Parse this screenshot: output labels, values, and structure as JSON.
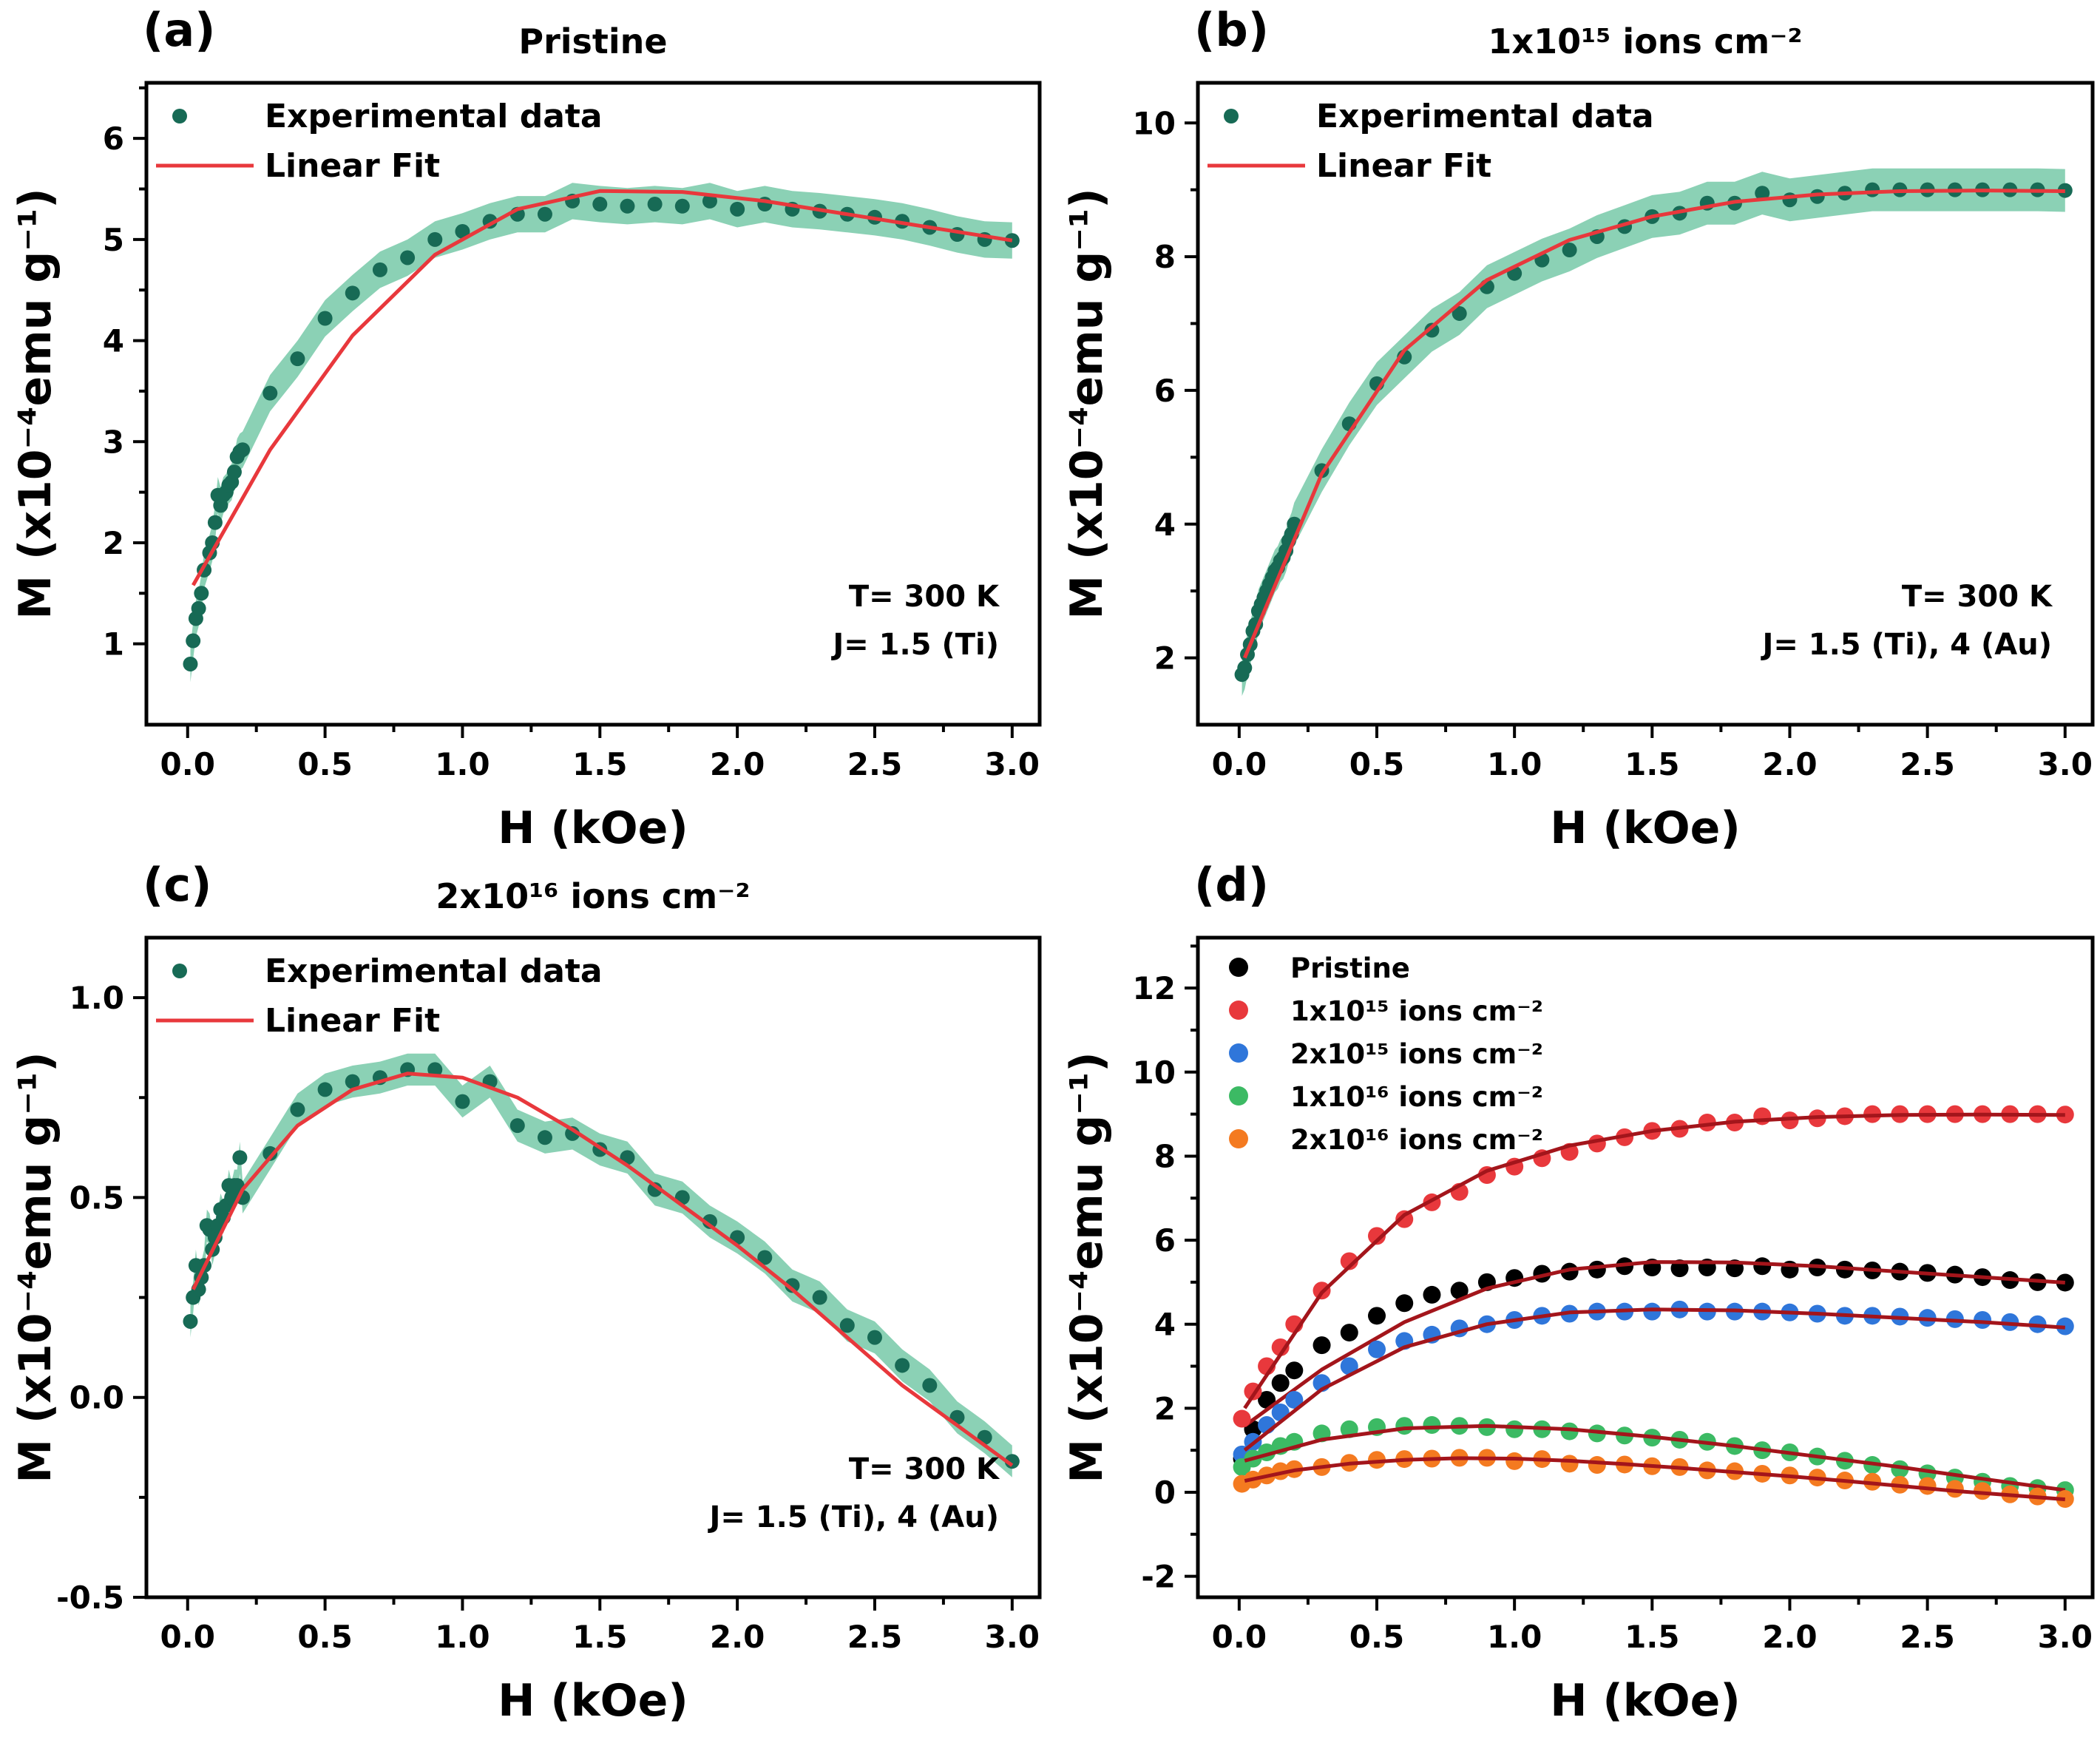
{
  "colors": {
    "experimental": "#176a55",
    "band": "#77c9a8",
    "fit": "#e8383c",
    "fit_dark": "#a3151b",
    "pristine": "#000000",
    "dose_1e15": "#e8383c",
    "dose_2e15": "#2f76da",
    "dose_1e16": "#3cba64",
    "dose_2e16": "#f47a20"
  },
  "chart_data": [
    {
      "panel": "a",
      "label": "(a)",
      "type": "scatter",
      "title": "Pristine",
      "xlabel": "H (kOe)",
      "ylabel": "M (x10⁻⁴emu g⁻¹)",
      "xlim": [
        -0.15,
        3.1
      ],
      "ylim": [
        0.2,
        6.55
      ],
      "xticks": [
        "0.0",
        "0.5",
        "1.0",
        "1.5",
        "2.0",
        "2.5",
        "3.0"
      ],
      "yticks": [
        "1",
        "2",
        "3",
        "4",
        "5",
        "6"
      ],
      "legend": {
        "marker_label": "Experimental data",
        "line_label": "Linear Fit",
        "placement": "top-left"
      },
      "annotations": [
        "T= 300 K",
        "J= 1.5 (Ti)"
      ],
      "x": [
        0.01,
        0.02,
        0.03,
        0.04,
        0.05,
        0.06,
        0.08,
        0.09,
        0.1,
        0.11,
        0.12,
        0.13,
        0.14,
        0.15,
        0.16,
        0.17,
        0.18,
        0.19,
        0.2,
        0.3,
        0.4,
        0.5,
        0.6,
        0.7,
        0.8,
        0.9,
        1.0,
        1.1,
        1.2,
        1.3,
        1.4,
        1.5,
        1.6,
        1.7,
        1.8,
        1.9,
        2.0,
        2.1,
        2.2,
        2.3,
        2.4,
        2.5,
        2.6,
        2.7,
        2.8,
        2.9,
        3.0
      ],
      "y": [
        0.8,
        1.03,
        1.25,
        1.35,
        1.5,
        1.73,
        1.9,
        2.0,
        2.2,
        2.47,
        2.37,
        2.47,
        2.5,
        2.57,
        2.6,
        2.7,
        2.85,
        2.9,
        2.92,
        3.48,
        3.82,
        4.22,
        4.47,
        4.7,
        4.82,
        5.0,
        5.08,
        5.18,
        5.25,
        5.25,
        5.38,
        5.35,
        5.33,
        5.35,
        5.33,
        5.38,
        5.3,
        5.35,
        5.3,
        5.28,
        5.25,
        5.22,
        5.18,
        5.12,
        5.05,
        5.0,
        4.99
      ],
      "fit": {
        "x": [
          0.02,
          0.3,
          0.6,
          0.9,
          1.2,
          1.5,
          1.8,
          2.1,
          2.4,
          2.7,
          3.0
        ],
        "y": [
          1.58,
          2.92,
          4.05,
          4.85,
          5.3,
          5.48,
          5.47,
          5.38,
          5.25,
          5.12,
          4.99
        ]
      },
      "band_halfwidth": 0.18
    },
    {
      "panel": "b",
      "label": "(b)",
      "type": "scatter",
      "title": "1x10¹⁵ ions cm⁻²",
      "xlabel": "H (kOe)",
      "ylabel": "M (x10⁻⁴emu g⁻¹)",
      "xlim": [
        -0.15,
        3.1
      ],
      "ylim": [
        1.0,
        10.6
      ],
      "xticks": [
        "0.0",
        "0.5",
        "1.0",
        "1.5",
        "2.0",
        "2.5",
        "3.0"
      ],
      "yticks": [
        "2",
        "4",
        "6",
        "8",
        "10"
      ],
      "legend": {
        "marker_label": "Experimental data",
        "line_label": "Linear Fit",
        "placement": "top-left"
      },
      "annotations": [
        "T= 300 K",
        "J= 1.5 (Ti), 4 (Au)"
      ],
      "x": [
        0.01,
        0.02,
        0.03,
        0.04,
        0.05,
        0.06,
        0.07,
        0.08,
        0.09,
        0.1,
        0.11,
        0.12,
        0.13,
        0.14,
        0.15,
        0.16,
        0.17,
        0.18,
        0.19,
        0.2,
        0.3,
        0.4,
        0.5,
        0.6,
        0.7,
        0.8,
        0.9,
        1.0,
        1.1,
        1.2,
        1.3,
        1.4,
        1.5,
        1.6,
        1.7,
        1.8,
        1.9,
        2.0,
        2.1,
        2.2,
        2.3,
        2.4,
        2.5,
        2.6,
        2.7,
        2.8,
        2.9,
        3.0
      ],
      "y": [
        1.75,
        1.85,
        2.05,
        2.2,
        2.4,
        2.5,
        2.7,
        2.8,
        2.9,
        3.0,
        3.1,
        3.2,
        3.3,
        3.35,
        3.45,
        3.5,
        3.6,
        3.75,
        3.85,
        4.0,
        4.8,
        5.5,
        6.1,
        6.5,
        6.9,
        7.15,
        7.55,
        7.75,
        7.95,
        8.1,
        8.3,
        8.45,
        8.6,
        8.65,
        8.8,
        8.8,
        8.95,
        8.85,
        8.9,
        8.95,
        9.0,
        9.0,
        9.0,
        9.0,
        9.0,
        9.0,
        9.0,
        8.99
      ],
      "fit": {
        "x": [
          0.02,
          0.3,
          0.6,
          0.9,
          1.2,
          1.5,
          1.8,
          2.1,
          2.4,
          2.7,
          3.0
        ],
        "y": [
          2.0,
          4.75,
          6.6,
          7.65,
          8.25,
          8.6,
          8.82,
          8.93,
          8.98,
          8.99,
          8.98
        ]
      },
      "band_halfwidth": 0.32
    },
    {
      "panel": "c",
      "label": "(c)",
      "type": "scatter",
      "title": "2x10¹⁶ ions cm⁻²",
      "xlabel": "H (kOe)",
      "ylabel": "M (x10⁻⁴emu g⁻¹)",
      "xlim": [
        -0.15,
        3.1
      ],
      "ylim": [
        -0.5,
        1.15
      ],
      "xticks": [
        "0.0",
        "0.5",
        "1.0",
        "1.5",
        "2.0",
        "2.5",
        "3.0"
      ],
      "yticks": [
        "-0.5",
        "0.0",
        "0.5",
        "1.0"
      ],
      "legend": {
        "marker_label": "Experimental data",
        "line_label": "Linear Fit",
        "placement": "top-left"
      },
      "annotations": [
        "T= 300 K",
        "J= 1.5 (Ti), 4 (Au)"
      ],
      "x": [
        0.01,
        0.02,
        0.03,
        0.04,
        0.05,
        0.06,
        0.07,
        0.08,
        0.09,
        0.1,
        0.11,
        0.12,
        0.13,
        0.14,
        0.15,
        0.16,
        0.17,
        0.18,
        0.19,
        0.2,
        0.3,
        0.4,
        0.5,
        0.6,
        0.7,
        0.8,
        0.9,
        1.0,
        1.1,
        1.2,
        1.3,
        1.4,
        1.5,
        1.6,
        1.7,
        1.8,
        1.9,
        2.0,
        2.1,
        2.2,
        2.3,
        2.4,
        2.5,
        2.6,
        2.7,
        2.8,
        2.9,
        3.0
      ],
      "y": [
        0.19,
        0.25,
        0.33,
        0.27,
        0.3,
        0.33,
        0.43,
        0.42,
        0.37,
        0.4,
        0.43,
        0.47,
        0.45,
        0.48,
        0.53,
        0.5,
        0.53,
        0.53,
        0.6,
        0.5,
        0.61,
        0.72,
        0.77,
        0.79,
        0.8,
        0.82,
        0.82,
        0.74,
        0.79,
        0.68,
        0.65,
        0.66,
        0.62,
        0.6,
        0.52,
        0.5,
        0.44,
        0.4,
        0.35,
        0.28,
        0.25,
        0.18,
        0.15,
        0.08,
        0.03,
        -0.05,
        -0.1,
        -0.16
      ],
      "fit": {
        "x": [
          0.02,
          0.2,
          0.4,
          0.6,
          0.8,
          1.0,
          1.2,
          1.4,
          1.6,
          1.8,
          2.0,
          2.2,
          2.4,
          2.6,
          2.8,
          3.0
        ],
        "y": [
          0.27,
          0.52,
          0.68,
          0.77,
          0.81,
          0.8,
          0.75,
          0.67,
          0.58,
          0.48,
          0.38,
          0.27,
          0.15,
          0.03,
          -0.07,
          -0.17
        ]
      },
      "band_halfwidth": 0.04
    },
    {
      "panel": "d",
      "label": "(d)",
      "type": "scatter",
      "title": "",
      "xlabel": "H (kOe)",
      "ylabel": "M (x10⁻⁴emu g⁻¹)",
      "xlim": [
        -0.15,
        3.1
      ],
      "ylim": [
        -2.5,
        13.2
      ],
      "xticks": [
        "0.0",
        "0.5",
        "1.0",
        "1.5",
        "2.0",
        "2.5",
        "3.0"
      ],
      "yticks": [
        "-2",
        "0",
        "2",
        "4",
        "6",
        "8",
        "10",
        "12"
      ],
      "legend_placement": "top-left",
      "series": [
        {
          "name": "Pristine",
          "color_key": "pristine",
          "x": [
            0.01,
            0.05,
            0.1,
            0.15,
            0.2,
            0.3,
            0.4,
            0.5,
            0.6,
            0.7,
            0.8,
            0.9,
            1.0,
            1.1,
            1.2,
            1.3,
            1.4,
            1.5,
            1.6,
            1.7,
            1.8,
            1.9,
            2.0,
            2.1,
            2.2,
            2.3,
            2.4,
            2.5,
            2.6,
            2.7,
            2.8,
            2.9,
            3.0
          ],
          "y": [
            0.8,
            1.5,
            2.2,
            2.6,
            2.9,
            3.5,
            3.8,
            4.2,
            4.5,
            4.7,
            4.8,
            5.0,
            5.1,
            5.2,
            5.25,
            5.3,
            5.38,
            5.35,
            5.33,
            5.35,
            5.33,
            5.38,
            5.3,
            5.35,
            5.3,
            5.28,
            5.25,
            5.22,
            5.18,
            5.12,
            5.05,
            5.0,
            4.99
          ],
          "fit": {
            "x": [
              0.02,
              0.3,
              0.6,
              0.9,
              1.2,
              1.5,
              1.8,
              2.1,
              2.4,
              2.7,
              3.0
            ],
            "y": [
              1.58,
              2.92,
              4.05,
              4.85,
              5.3,
              5.48,
              5.47,
              5.38,
              5.25,
              5.12,
              4.99
            ]
          }
        },
        {
          "name": "1x10¹⁵ ions cm⁻²",
          "color_key": "dose_1e15",
          "x": [
            0.01,
            0.05,
            0.1,
            0.15,
            0.2,
            0.3,
            0.4,
            0.5,
            0.6,
            0.7,
            0.8,
            0.9,
            1.0,
            1.1,
            1.2,
            1.3,
            1.4,
            1.5,
            1.6,
            1.7,
            1.8,
            1.9,
            2.0,
            2.1,
            2.2,
            2.3,
            2.4,
            2.5,
            2.6,
            2.7,
            2.8,
            2.9,
            3.0
          ],
          "y": [
            1.75,
            2.4,
            3.0,
            3.45,
            4.0,
            4.8,
            5.5,
            6.1,
            6.5,
            6.9,
            7.15,
            7.55,
            7.75,
            7.95,
            8.1,
            8.3,
            8.45,
            8.6,
            8.65,
            8.8,
            8.8,
            8.95,
            8.85,
            8.9,
            8.95,
            9.0,
            9.0,
            9.0,
            9.0,
            9.0,
            9.0,
            9.0,
            8.99
          ],
          "fit": {
            "x": [
              0.02,
              0.3,
              0.6,
              0.9,
              1.2,
              1.5,
              1.8,
              2.1,
              2.4,
              2.7,
              3.0
            ],
            "y": [
              2.0,
              4.75,
              6.6,
              7.65,
              8.25,
              8.6,
              8.82,
              8.93,
              8.98,
              8.99,
              8.98
            ]
          }
        },
        {
          "name": "2x10¹⁵ ions cm⁻²",
          "color_key": "dose_2e15",
          "x": [
            0.01,
            0.05,
            0.1,
            0.15,
            0.2,
            0.3,
            0.4,
            0.5,
            0.6,
            0.7,
            0.8,
            0.9,
            1.0,
            1.1,
            1.2,
            1.3,
            1.4,
            1.5,
            1.6,
            1.7,
            1.8,
            1.9,
            2.0,
            2.1,
            2.2,
            2.3,
            2.4,
            2.5,
            2.6,
            2.7,
            2.8,
            2.9,
            3.0
          ],
          "y": [
            0.9,
            1.2,
            1.6,
            1.9,
            2.2,
            2.6,
            3.0,
            3.4,
            3.6,
            3.75,
            3.9,
            4.0,
            4.1,
            4.2,
            4.25,
            4.3,
            4.3,
            4.3,
            4.35,
            4.3,
            4.3,
            4.3,
            4.28,
            4.25,
            4.2,
            4.2,
            4.18,
            4.15,
            4.12,
            4.1,
            4.05,
            4.0,
            3.95
          ],
          "fit": {
            "x": [
              0.02,
              0.3,
              0.6,
              0.9,
              1.2,
              1.5,
              1.8,
              2.1,
              2.4,
              2.7,
              3.0
            ],
            "y": [
              1.0,
              2.45,
              3.45,
              4.0,
              4.28,
              4.35,
              4.33,
              4.25,
              4.15,
              4.05,
              3.92
            ]
          }
        },
        {
          "name": "1x10¹⁶ ions cm⁻²",
          "color_key": "dose_1e16",
          "x": [
            0.01,
            0.05,
            0.1,
            0.15,
            0.2,
            0.3,
            0.4,
            0.5,
            0.6,
            0.7,
            0.8,
            0.9,
            1.0,
            1.1,
            1.2,
            1.3,
            1.4,
            1.5,
            1.6,
            1.7,
            1.8,
            1.9,
            2.0,
            2.1,
            2.2,
            2.3,
            2.4,
            2.5,
            2.6,
            2.7,
            2.8,
            2.9,
            3.0
          ],
          "y": [
            0.6,
            0.8,
            0.95,
            1.1,
            1.2,
            1.4,
            1.5,
            1.55,
            1.58,
            1.6,
            1.58,
            1.55,
            1.5,
            1.5,
            1.45,
            1.4,
            1.35,
            1.3,
            1.25,
            1.2,
            1.1,
            1.0,
            0.95,
            0.85,
            0.75,
            0.65,
            0.55,
            0.45,
            0.35,
            0.25,
            0.15,
            0.1,
            0.05
          ],
          "fit": {
            "x": [
              0.02,
              0.3,
              0.6,
              0.9,
              1.2,
              1.5,
              1.8,
              2.1,
              2.4,
              2.7,
              3.0
            ],
            "y": [
              0.75,
              1.25,
              1.52,
              1.58,
              1.5,
              1.32,
              1.1,
              0.85,
              0.6,
              0.32,
              0.05
            ]
          }
        },
        {
          "name": "2x10¹⁶ ions cm⁻²",
          "color_key": "dose_2e16",
          "x": [
            0.01,
            0.05,
            0.1,
            0.15,
            0.2,
            0.3,
            0.4,
            0.5,
            0.6,
            0.7,
            0.8,
            0.9,
            1.0,
            1.1,
            1.2,
            1.3,
            1.4,
            1.5,
            1.6,
            1.7,
            1.8,
            1.9,
            2.0,
            2.1,
            2.2,
            2.3,
            2.4,
            2.5,
            2.6,
            2.7,
            2.8,
            2.9,
            3.0
          ],
          "y": [
            0.2,
            0.3,
            0.4,
            0.5,
            0.55,
            0.6,
            0.7,
            0.77,
            0.79,
            0.8,
            0.82,
            0.82,
            0.74,
            0.79,
            0.68,
            0.65,
            0.66,
            0.62,
            0.6,
            0.52,
            0.5,
            0.44,
            0.4,
            0.35,
            0.28,
            0.25,
            0.18,
            0.15,
            0.08,
            0.03,
            -0.05,
            -0.1,
            -0.16
          ],
          "fit": {
            "x": [
              0.02,
              0.2,
              0.4,
              0.6,
              0.8,
              1.0,
              1.2,
              1.4,
              1.6,
              1.8,
              2.0,
              2.2,
              2.4,
              2.6,
              2.8,
              3.0
            ],
            "y": [
              0.27,
              0.52,
              0.68,
              0.77,
              0.81,
              0.8,
              0.75,
              0.67,
              0.58,
              0.48,
              0.38,
              0.27,
              0.15,
              0.03,
              -0.07,
              -0.17
            ]
          }
        }
      ]
    }
  ]
}
